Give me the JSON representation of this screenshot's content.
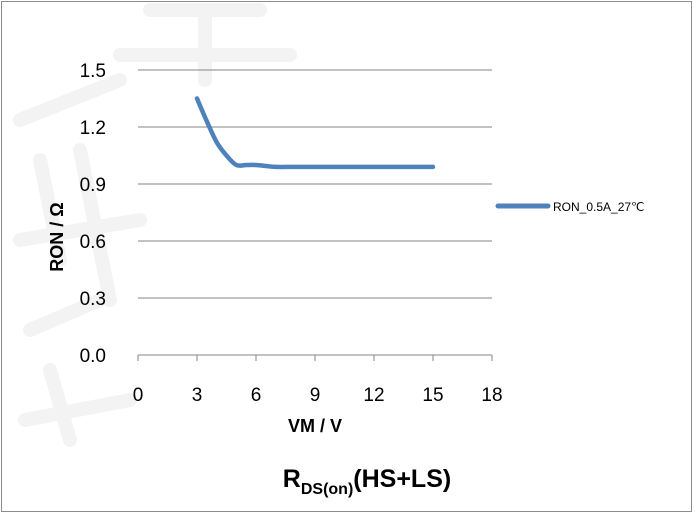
{
  "chart_data": {
    "type": "line",
    "title": {
      "prefix": "R",
      "subscript": "DS(on)",
      "suffix": "(HS+LS)"
    },
    "xlabel": "VM / V",
    "ylabel": "RON / Ω",
    "xlim": [
      0,
      18
    ],
    "ylim": [
      0,
      1.5
    ],
    "x_ticks": [
      "0",
      "3",
      "6",
      "9",
      "12",
      "15",
      "18"
    ],
    "y_ticks": [
      "0.0",
      "0.3",
      "0.6",
      "0.9",
      "1.2",
      "1.5"
    ],
    "grid": "horizontal",
    "legend_position": "right",
    "series": [
      {
        "name": "RON_0.5A_27℃",
        "color": "#4f81bd",
        "x": [
          3,
          3.5,
          4,
          4.5,
          5,
          5.5,
          6,
          6.5,
          7,
          8,
          9,
          10,
          11,
          12,
          13,
          14,
          15
        ],
        "y": [
          1.35,
          1.23,
          1.12,
          1.05,
          1.0,
          1.0,
          1.0,
          0.995,
          0.99,
          0.99,
          0.99,
          0.99,
          0.99,
          0.99,
          0.99,
          0.99,
          0.99
        ]
      }
    ]
  }
}
